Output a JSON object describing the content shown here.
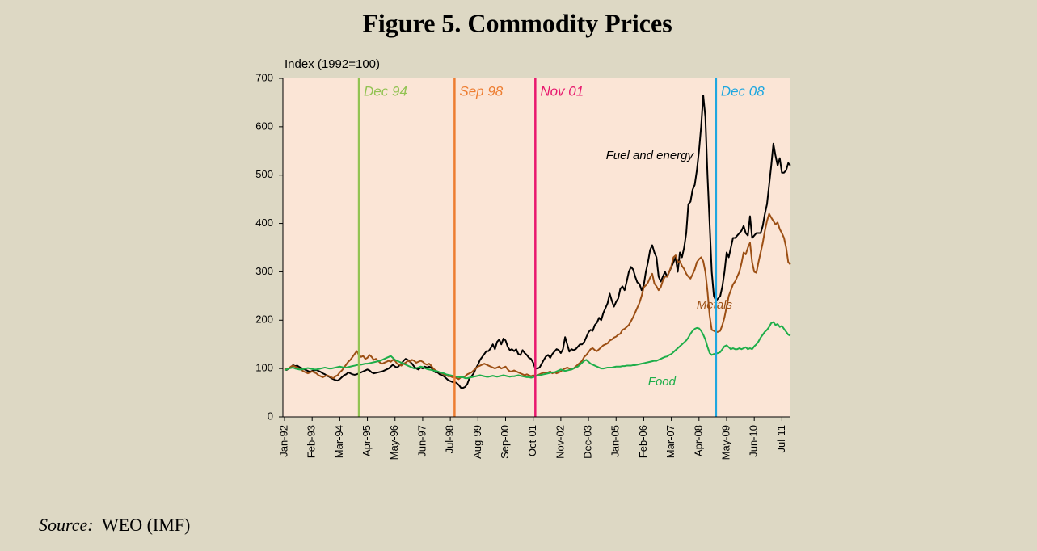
{
  "chart_data": {
    "type": "line",
    "title": "Figure 5. Commodity Prices",
    "y_label": "Index (1992=100)",
    "source_label": "Source:",
    "source": "WEO (IMF)",
    "categories": [
      "Jan-92",
      null,
      null,
      null,
      null,
      null,
      null,
      null,
      null,
      null,
      null,
      null,
      null,
      "Feb-93",
      null,
      null,
      null,
      null,
      null,
      null,
      null,
      null,
      null,
      null,
      null,
      null,
      "Mar-94",
      null,
      null,
      null,
      null,
      null,
      null,
      null,
      null,
      null,
      null,
      null,
      null,
      "Apr-95",
      null,
      null,
      null,
      null,
      null,
      null,
      null,
      null,
      null,
      null,
      null,
      null,
      "May-96",
      null,
      null,
      null,
      null,
      null,
      null,
      null,
      null,
      null,
      null,
      null,
      null,
      "Jun-97",
      null,
      null,
      null,
      null,
      null,
      null,
      null,
      null,
      null,
      null,
      null,
      null,
      "Jul-98",
      null,
      null,
      null,
      null,
      null,
      null,
      null,
      null,
      null,
      null,
      null,
      null,
      "Aug-99",
      null,
      null,
      null,
      null,
      null,
      null,
      null,
      null,
      null,
      null,
      null,
      null,
      "Sep-00",
      null,
      null,
      null,
      null,
      null,
      null,
      null,
      null,
      null,
      null,
      null,
      null,
      "Oct-01",
      null,
      null,
      null,
      null,
      null,
      null,
      null,
      null,
      null,
      null,
      null,
      null,
      "Nov-02",
      null,
      null,
      null,
      null,
      null,
      null,
      null,
      null,
      null,
      null,
      null,
      null,
      "Dec-03",
      null,
      null,
      null,
      null,
      null,
      null,
      null,
      null,
      null,
      null,
      null,
      null,
      "Jan-05",
      null,
      null,
      null,
      null,
      null,
      null,
      null,
      null,
      null,
      null,
      null,
      null,
      "Feb-06",
      null,
      null,
      null,
      null,
      null,
      null,
      null,
      null,
      null,
      null,
      null,
      null,
      "Mar-07",
      null,
      null,
      null,
      null,
      null,
      null,
      null,
      null,
      null,
      null,
      null,
      null,
      "Apr-08",
      null,
      null,
      null,
      null,
      null,
      null,
      null,
      null,
      null,
      null,
      null,
      null,
      "May-09",
      null,
      null,
      null,
      null,
      null,
      null,
      null,
      null,
      null,
      null,
      null,
      null,
      "Jun-10",
      null,
      null,
      null,
      null,
      null,
      null,
      null,
      null,
      null,
      null,
      null,
      null,
      "Jul-11",
      null,
      null,
      null,
      null
    ],
    "series": [
      {
        "name": "Fuel and energy",
        "color": "#000000",
        "values": [
          98,
          97,
          100,
          103,
          107,
          105,
          106,
          103,
          101,
          99,
          97,
          95,
          93,
          95,
          96,
          97,
          95,
          93,
          90,
          88,
          85,
          83,
          80,
          78,
          76,
          75,
          78,
          82,
          86,
          88,
          92,
          90,
          88,
          87,
          88,
          90,
          92,
          94,
          96,
          98,
          96,
          92,
          90,
          91,
          92,
          93,
          94,
          96,
          98,
          100,
          104,
          108,
          104,
          102,
          106,
          110,
          116,
          120,
          118,
          114,
          110,
          104,
          100,
          98,
          102,
          100,
          104,
          102,
          104,
          102,
          96,
          92,
          92,
          88,
          86,
          84,
          80,
          76,
          74,
          72,
          72,
          70,
          66,
          60,
          60,
          62,
          68,
          80,
          84,
          90,
          100,
          108,
          118,
          124,
          130,
          136,
          136,
          142,
          150,
          140,
          155,
          160,
          150,
          162,
          158,
          145,
          138,
          140,
          136,
          140,
          130,
          128,
          138,
          132,
          128,
          122,
          120,
          112,
          100,
          100,
          102,
          110,
          118,
          125,
          128,
          122,
          130,
          135,
          140,
          138,
          132,
          140,
          165,
          150,
          135,
          140,
          138,
          140,
          145,
          150,
          150,
          155,
          165,
          175,
          180,
          178,
          190,
          195,
          205,
          200,
          215,
          225,
          235,
          255,
          240,
          228,
          238,
          245,
          265,
          270,
          262,
          280,
          300,
          310,
          305,
          290,
          278,
          275,
          262,
          272,
          300,
          320,
          345,
          355,
          340,
          330,
          290,
          280,
          290,
          300,
          290,
          300,
          310,
          320,
          330,
          300,
          340,
          330,
          350,
          380,
          440,
          445,
          470,
          480,
          510,
          550,
          600,
          665,
          620,
          500,
          400,
          300,
          250,
          240,
          245,
          250,
          270,
          300,
          340,
          330,
          350,
          370,
          370,
          375,
          380,
          385,
          395,
          380,
          375,
          415,
          370,
          375,
          380,
          380,
          380,
          395,
          420,
          440,
          480,
          520,
          565,
          540,
          520,
          535,
          505,
          505,
          510,
          525,
          520
        ]
      },
      {
        "name": "Metals",
        "color": "#9c4f14",
        "values": [
          100,
          98,
          100,
          104,
          106,
          104,
          102,
          100,
          97,
          94,
          92,
          90,
          92,
          94,
          92,
          90,
          86,
          84,
          82,
          84,
          86,
          84,
          82,
          80,
          84,
          86,
          92,
          96,
          102,
          108,
          114,
          118,
          124,
          130,
          136,
          128,
          124,
          126,
          120,
          122,
          128,
          124,
          118,
          120,
          116,
          112,
          110,
          112,
          114,
          116,
          114,
          118,
          116,
          110,
          108,
          106,
          110,
          112,
          116,
          114,
          118,
          116,
          112,
          114,
          116,
          114,
          110,
          108,
          110,
          106,
          100,
          96,
          94,
          92,
          90,
          88,
          86,
          84,
          84,
          82,
          82,
          80,
          78,
          82,
          82,
          84,
          88,
          90,
          92,
          96,
          100,
          104,
          106,
          108,
          110,
          108,
          106,
          104,
          102,
          100,
          102,
          104,
          100,
          102,
          104,
          98,
          94,
          94,
          96,
          94,
          92,
          90,
          88,
          86,
          88,
          86,
          84,
          86,
          84,
          86,
          88,
          90,
          92,
          90,
          92,
          94,
          90,
          92,
          90,
          92,
          94,
          98,
          100,
          102,
          100,
          98,
          100,
          104,
          108,
          112,
          116,
          124,
          128,
          134,
          140,
          142,
          138,
          136,
          140,
          144,
          148,
          150,
          152,
          158,
          160,
          164,
          166,
          170,
          172,
          180,
          182,
          186,
          190,
          198,
          206,
          216,
          226,
          236,
          250,
          268,
          272,
          278,
          288,
          296,
          276,
          270,
          262,
          268,
          282,
          290,
          290,
          300,
          312,
          330,
          334,
          320,
          322,
          312,
          306,
          296,
          290,
          286,
          295,
          305,
          320,
          326,
          330,
          322,
          300,
          260,
          210,
          180,
          178,
          175,
          176,
          178,
          190,
          206,
          228,
          250,
          262,
          274,
          280,
          290,
          300,
          318,
          340,
          336,
          350,
          360,
          320,
          300,
          298,
          320,
          340,
          360,
          385,
          405,
          420,
          412,
          405,
          398,
          402,
          388,
          380,
          370,
          350,
          320,
          315
        ]
      },
      {
        "name": "Food",
        "color": "#1eae4a",
        "values": [
          97,
          98,
          100,
          101,
          102,
          100,
          99,
          98,
          98,
          99,
          100,
          101,
          100,
          99,
          98,
          98,
          99,
          100,
          101,
          102,
          101,
          100,
          100,
          101,
          102,
          103,
          104,
          103,
          102,
          102,
          103,
          104,
          105,
          106,
          107,
          108,
          108,
          109,
          110,
          110,
          111,
          112,
          113,
          114,
          115,
          116,
          118,
          120,
          122,
          124,
          126,
          122,
          118,
          116,
          114,
          112,
          110,
          108,
          106,
          104,
          102,
          100,
          101,
          102,
          104,
          103,
          101,
          99,
          98,
          97,
          96,
          95,
          94,
          92,
          91,
          90,
          88,
          87,
          86,
          85,
          84,
          83,
          82,
          82,
          82,
          80,
          80,
          81,
          82,
          83,
          84,
          85,
          86,
          85,
          84,
          83,
          83,
          84,
          85,
          84,
          83,
          84,
          85,
          86,
          85,
          84,
          83,
          84,
          84,
          85,
          86,
          85,
          84,
          83,
          82,
          82,
          81,
          82,
          84,
          86,
          86,
          87,
          88,
          89,
          90,
          91,
          92,
          92,
          94,
          96,
          98,
          96,
          95,
          96,
          97,
          98,
          100,
          102,
          104,
          108,
          112,
          116,
          118,
          114,
          110,
          108,
          106,
          104,
          102,
          100,
          100,
          101,
          102,
          102,
          102,
          103,
          104,
          104,
          104,
          105,
          105,
          106,
          106,
          106,
          107,
          107,
          108,
          109,
          110,
          111,
          112,
          113,
          114,
          115,
          116,
          116,
          118,
          120,
          122,
          124,
          125,
          128,
          130,
          134,
          138,
          142,
          146,
          150,
          154,
          158,
          164,
          172,
          178,
          182,
          184,
          183,
          178,
          170,
          160,
          145,
          132,
          128,
          130,
          131,
          132,
          134,
          140,
          146,
          148,
          144,
          140,
          142,
          140,
          140,
          142,
          140,
          142,
          144,
          140,
          142,
          140,
          146,
          150,
          156,
          164,
          170,
          176,
          180,
          186,
          194,
          196,
          190,
          192,
          186,
          188,
          182,
          176,
          170,
          168
        ]
      }
    ],
    "markers": [
      {
        "label": "Dec 94",
        "position": 35,
        "color": "#92c353"
      },
      {
        "label": "Sep 98",
        "position": 80,
        "color": "#ed7d31"
      },
      {
        "label": "Nov 01",
        "position": 118,
        "color": "#e8196e"
      },
      {
        "label": "Dec 08",
        "position": 203,
        "color": "#1ea7e0"
      }
    ],
    "ylim": [
      0,
      700
    ],
    "yticks": [
      0,
      100,
      200,
      300,
      400,
      500,
      600,
      700
    ],
    "grid": false,
    "plot_background": "#fbe5d6"
  }
}
